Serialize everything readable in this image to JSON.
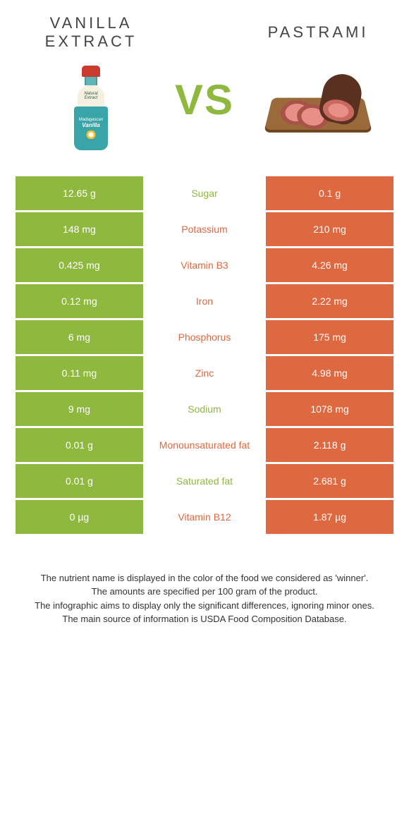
{
  "colors": {
    "left": "#8fb83f",
    "right": "#de6840",
    "text": "#444444"
  },
  "header": {
    "left_title": "VANILLA EXTRACT",
    "right_title": "PASTRAMI",
    "vs": "VS"
  },
  "rows": [
    {
      "left": "12.65 g",
      "label": "Sugar",
      "right": "0.1 g",
      "winner": "left"
    },
    {
      "left": "148 mg",
      "label": "Potassium",
      "right": "210 mg",
      "winner": "right"
    },
    {
      "left": "0.425 mg",
      "label": "Vitamin B3",
      "right": "4.26 mg",
      "winner": "right"
    },
    {
      "left": "0.12 mg",
      "label": "Iron",
      "right": "2.22 mg",
      "winner": "right"
    },
    {
      "left": "6 mg",
      "label": "Phosphorus",
      "right": "175 mg",
      "winner": "right"
    },
    {
      "left": "0.11 mg",
      "label": "Zinc",
      "right": "4.98 mg",
      "winner": "right"
    },
    {
      "left": "9 mg",
      "label": "Sodium",
      "right": "1078 mg",
      "winner": "left"
    },
    {
      "left": "0.01 g",
      "label": "Monounsaturated fat",
      "right": "2.118 g",
      "winner": "right"
    },
    {
      "left": "0.01 g",
      "label": "Saturated fat",
      "right": "2.681 g",
      "winner": "left"
    },
    {
      "left": "0 µg",
      "label": "Vitamin B12",
      "right": "1.87 µg",
      "winner": "right"
    }
  ],
  "footnotes": [
    "The nutrient name is displayed in the color of the food we considered as 'winner'.",
    "The amounts are specified per 100 gram of the product.",
    "The infographic aims to display only the significant differences, ignoring minor ones.",
    "The main source of information is USDA Food Composition Database."
  ]
}
